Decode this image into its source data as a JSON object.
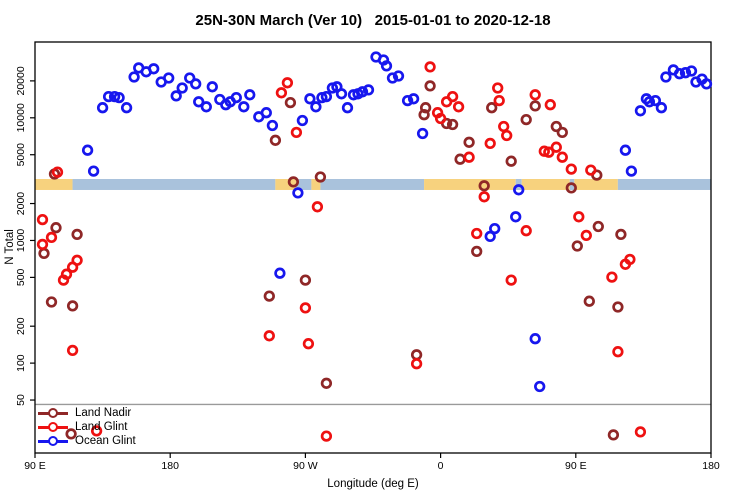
{
  "chart": {
    "title": "25N-30N March (Ver 10)   2015-01-01 to 2020-12-18",
    "xlabel": "Longitude (deg E)",
    "ylabel": "N Total"
  },
  "chart_data": {
    "type": "scatter",
    "title": "25N-30N March (Ver 10)   2015-01-01 to 2020-12-18",
    "xlabel": "Longitude (deg E)",
    "ylabel": "N Total",
    "x_axis": {
      "range": [
        90,
        540
      ],
      "wraps_longitude": true,
      "ticks": [
        {
          "value": 90,
          "label": "90 E"
        },
        {
          "value": 180,
          "label": "180"
        },
        {
          "value": 270,
          "label": "90 W"
        },
        {
          "value": 360,
          "label": "0"
        },
        {
          "value": 450,
          "label": "90 E"
        },
        {
          "value": 540,
          "label": "180"
        }
      ]
    },
    "y_axis": {
      "scale": "log",
      "range": [
        18.5,
        41500
      ],
      "ticks": [
        50,
        100,
        200,
        500,
        1000,
        2000,
        5000,
        10000,
        20000
      ]
    },
    "reference_line": {
      "value": 46,
      "color": "#9a9a9a"
    },
    "surface_band": {
      "value_range": [
        2580,
        3170
      ],
      "land_color": "#f7d27e",
      "ocean_color": "#a9c2dc",
      "segments": [
        {
          "type": "land",
          "from": 90,
          "to": 115
        },
        {
          "type": "ocean",
          "from": 115,
          "to": 250
        },
        {
          "type": "land",
          "from": 250,
          "to": 264
        },
        {
          "type": "ocean",
          "from": 264,
          "to": 274
        },
        {
          "type": "land",
          "from": 274,
          "to": 280
        },
        {
          "type": "ocean",
          "from": 280,
          "to": 349
        },
        {
          "type": "land",
          "from": 349,
          "to": 410
        },
        {
          "type": "ocean",
          "from": 410,
          "to": 414
        },
        {
          "type": "land",
          "from": 414,
          "to": 446
        },
        {
          "type": "ocean",
          "from": 446,
          "to": 449
        },
        {
          "type": "land",
          "from": 449,
          "to": 478
        },
        {
          "type": "ocean",
          "from": 478,
          "to": 540
        }
      ]
    },
    "series": [
      {
        "name": "Land Nadir",
        "color": "#8f2727",
        "points": [
          [
            103,
            3480
          ],
          [
            104,
            1270
          ],
          [
            118,
            1120
          ],
          [
            96,
            785
          ],
          [
            101,
            315
          ],
          [
            115,
            293
          ],
          [
            114,
            26.5
          ],
          [
            260,
            13300
          ],
          [
            250,
            6550
          ],
          [
            280,
            3290
          ],
          [
            262,
            3000
          ],
          [
            270,
            475
          ],
          [
            246,
            352
          ],
          [
            284,
            68.5
          ],
          [
            353,
            18200
          ],
          [
            350,
            12100
          ],
          [
            349,
            10600
          ],
          [
            364,
            8980
          ],
          [
            368,
            8820
          ],
          [
            394,
            12100
          ],
          [
            423,
            12500
          ],
          [
            417,
            9670
          ],
          [
            379,
            6310
          ],
          [
            373,
            4600
          ],
          [
            407,
            4430
          ],
          [
            389,
            2790
          ],
          [
            384,
            814
          ],
          [
            344,
            117
          ],
          [
            437,
            8500
          ],
          [
            441,
            7610
          ],
          [
            464,
            3410
          ],
          [
            447,
            2680
          ],
          [
            465,
            1300
          ],
          [
            480,
            1120
          ],
          [
            451,
            902
          ],
          [
            459,
            320
          ],
          [
            478,
            287
          ],
          [
            475,
            26
          ]
        ]
      },
      {
        "name": "Land Glint",
        "color": "#ee1111",
        "points": [
          [
            105,
            3610
          ],
          [
            95,
            1480
          ],
          [
            101,
            1060
          ],
          [
            95,
            928
          ],
          [
            118,
            689
          ],
          [
            115,
            605
          ],
          [
            111,
            531
          ],
          [
            109,
            475
          ],
          [
            115,
            127
          ],
          [
            131,
            28
          ],
          [
            258,
            19300
          ],
          [
            254,
            16000
          ],
          [
            264,
            7610
          ],
          [
            278,
            1880
          ],
          [
            270,
            282
          ],
          [
            246,
            167
          ],
          [
            272,
            144
          ],
          [
            284,
            25.4
          ],
          [
            353,
            26000
          ],
          [
            368,
            14900
          ],
          [
            364,
            13500
          ],
          [
            372,
            12300
          ],
          [
            358,
            11000
          ],
          [
            360,
            9870
          ],
          [
            398,
            17500
          ],
          [
            399,
            13800
          ],
          [
            423,
            15400
          ],
          [
            402,
            8500
          ],
          [
            404,
            7180
          ],
          [
            393,
            6190
          ],
          [
            379,
            4770
          ],
          [
            429,
            5340
          ],
          [
            389,
            2270
          ],
          [
            384,
            1140
          ],
          [
            417,
            1200
          ],
          [
            407,
            475
          ],
          [
            344,
            99
          ],
          [
            433,
            12800
          ],
          [
            432,
            5240
          ],
          [
            437,
            5760
          ],
          [
            441,
            4770
          ],
          [
            447,
            3820
          ],
          [
            460,
            3750
          ],
          [
            452,
            1560
          ],
          [
            457,
            1100
          ],
          [
            483,
            639
          ],
          [
            486,
            701
          ],
          [
            474,
            503
          ],
          [
            478,
            124
          ],
          [
            493,
            27.5
          ]
        ]
      },
      {
        "name": "Ocean Glint",
        "color": "#1717ee",
        "points": [
          [
            156,
            21500
          ],
          [
            159,
            25500
          ],
          [
            164,
            23700
          ],
          [
            169,
            25100
          ],
          [
            174,
            19600
          ],
          [
            179,
            21100
          ],
          [
            184,
            15100
          ],
          [
            188,
            17500
          ],
          [
            193,
            21100
          ],
          [
            197,
            18900
          ],
          [
            199,
            13500
          ],
          [
            135,
            12100
          ],
          [
            139,
            14900
          ],
          [
            143,
            14900
          ],
          [
            146,
            14600
          ],
          [
            151,
            12100
          ],
          [
            125,
            5440
          ],
          [
            129,
            3680
          ],
          [
            208,
            17900
          ],
          [
            204,
            12300
          ],
          [
            213,
            14100
          ],
          [
            217,
            12800
          ],
          [
            220,
            13500
          ],
          [
            224,
            14600
          ],
          [
            229,
            12300
          ],
          [
            233,
            15400
          ],
          [
            239,
            10200
          ],
          [
            244,
            11000
          ],
          [
            248,
            8660
          ],
          [
            268,
            9500
          ],
          [
            273,
            14300
          ],
          [
            277,
            12300
          ],
          [
            281,
            14600
          ],
          [
            284,
            14900
          ],
          [
            288,
            17500
          ],
          [
            291,
            17900
          ],
          [
            294,
            15700
          ],
          [
            298,
            12100
          ],
          [
            302,
            15400
          ],
          [
            305,
            15700
          ],
          [
            308,
            16300
          ],
          [
            312,
            16900
          ],
          [
            265,
            2440
          ],
          [
            253,
            541
          ],
          [
            317,
            31300
          ],
          [
            322,
            29600
          ],
          [
            324,
            26500
          ],
          [
            328,
            21100
          ],
          [
            332,
            21900
          ],
          [
            338,
            13800
          ],
          [
            342,
            14300
          ],
          [
            348,
            7450
          ],
          [
            412,
            2590
          ],
          [
            393,
            1080
          ],
          [
            396,
            1250
          ],
          [
            410,
            1560
          ],
          [
            423,
            158
          ],
          [
            426,
            64.5
          ],
          [
            510,
            21500
          ],
          [
            515,
            24600
          ],
          [
            519,
            22900
          ],
          [
            523,
            23300
          ],
          [
            527,
            24100
          ],
          [
            530,
            19600
          ],
          [
            534,
            20700
          ],
          [
            537,
            18900
          ],
          [
            493,
            11400
          ],
          [
            497,
            14300
          ],
          [
            499,
            13500
          ],
          [
            503,
            13800
          ],
          [
            507,
            12100
          ],
          [
            483,
            5440
          ],
          [
            487,
            3680
          ]
        ]
      }
    ],
    "legend_position": "bottom-left",
    "grid": false
  }
}
